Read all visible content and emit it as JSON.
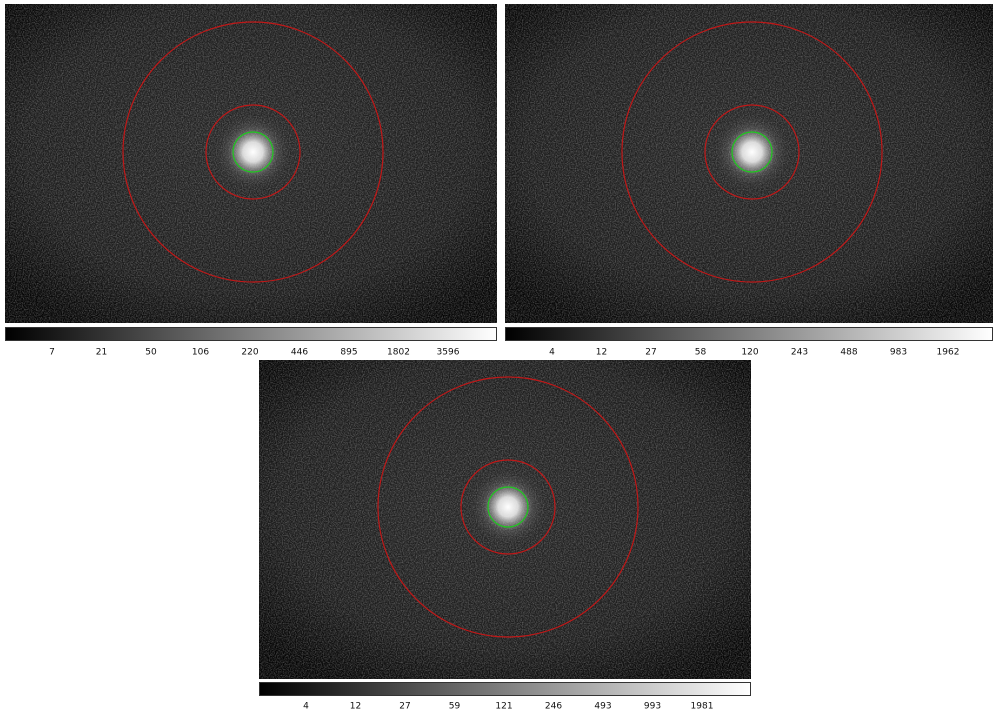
{
  "panels": [
    {
      "colorbar_ticks": [
        7,
        21,
        50,
        106,
        220,
        446,
        895,
        1802,
        3596
      ]
    },
    {
      "colorbar_ticks": [
        4,
        12,
        27,
        58,
        120,
        243,
        488,
        983,
        1962
      ]
    },
    {
      "colorbar_ticks": [
        4,
        12,
        27,
        59,
        121,
        246,
        493,
        993,
        1981
      ]
    }
  ]
}
